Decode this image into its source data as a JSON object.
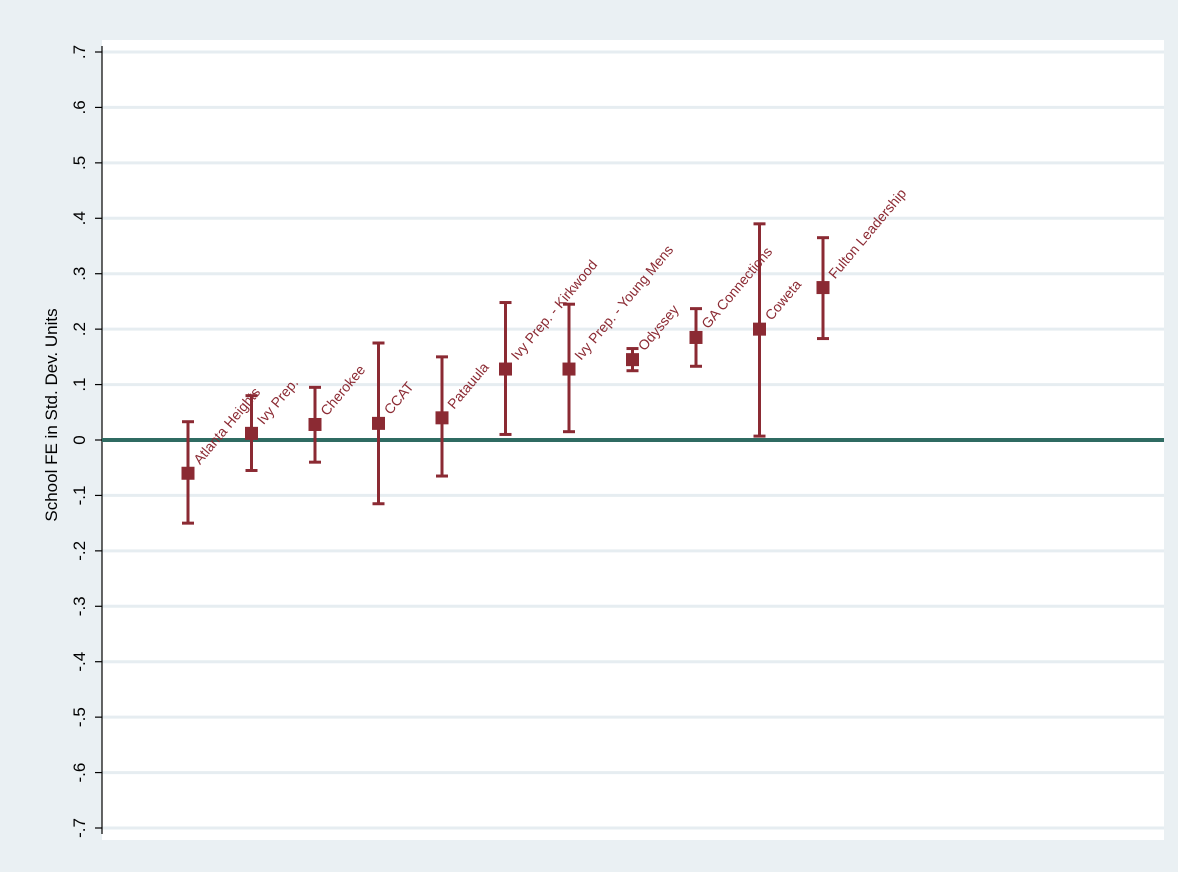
{
  "chart_data": {
    "type": "scatter",
    "ylabel": "School FE in Std. Dev. Units",
    "ylim": [
      -0.7,
      0.7
    ],
    "y_ticks": [
      0.7,
      0.6,
      0.5,
      0.4,
      0.3,
      0.2,
      0.1,
      0,
      -0.1,
      -0.2,
      -0.3,
      -0.4,
      -0.5,
      -0.6,
      -0.7
    ],
    "y_tick_labels": [
      ".7",
      ".6",
      ".5",
      ".4",
      ".3",
      ".2",
      ".1",
      "0",
      "-.1",
      "-.2",
      "-.3",
      "-.4",
      "-.5",
      "-.6",
      "-.7"
    ],
    "grid": true,
    "reference_line": 0,
    "colors": {
      "marker": "#8b2a33",
      "zero_line": "#2f6b62",
      "grid": "#e6edf1",
      "plot_bg": "#ffffff",
      "outer_bg": "#eaf0f3",
      "axis": "#000000"
    },
    "points": [
      {
        "label": "Atlanta Heights",
        "estimate": -0.06,
        "ci_low": -0.15,
        "ci_high": 0.033
      },
      {
        "label": "Ivy Prep.",
        "estimate": 0.012,
        "ci_low": -0.055,
        "ci_high": 0.08
      },
      {
        "label": "Cherokee",
        "estimate": 0.028,
        "ci_low": -0.04,
        "ci_high": 0.095
      },
      {
        "label": "CCAT",
        "estimate": 0.03,
        "ci_low": -0.115,
        "ci_high": 0.175
      },
      {
        "label": "Patauula",
        "estimate": 0.04,
        "ci_low": -0.065,
        "ci_high": 0.15
      },
      {
        "label": "Ivy Prep. - Kirkwood",
        "estimate": 0.128,
        "ci_low": 0.01,
        "ci_high": 0.248
      },
      {
        "label": "Ivy Prep. - Young Mens",
        "estimate": 0.128,
        "ci_low": 0.015,
        "ci_high": 0.245
      },
      {
        "label": "Odyssey",
        "estimate": 0.145,
        "ci_low": 0.125,
        "ci_high": 0.165
      },
      {
        "label": "GA Connections",
        "estimate": 0.185,
        "ci_low": 0.133,
        "ci_high": 0.237
      },
      {
        "label": "Coweta",
        "estimate": 0.2,
        "ci_low": 0.007,
        "ci_high": 0.39
      },
      {
        "label": "Fulton Leadership",
        "estimate": 0.275,
        "ci_low": 0.183,
        "ci_high": 0.365
      }
    ]
  }
}
